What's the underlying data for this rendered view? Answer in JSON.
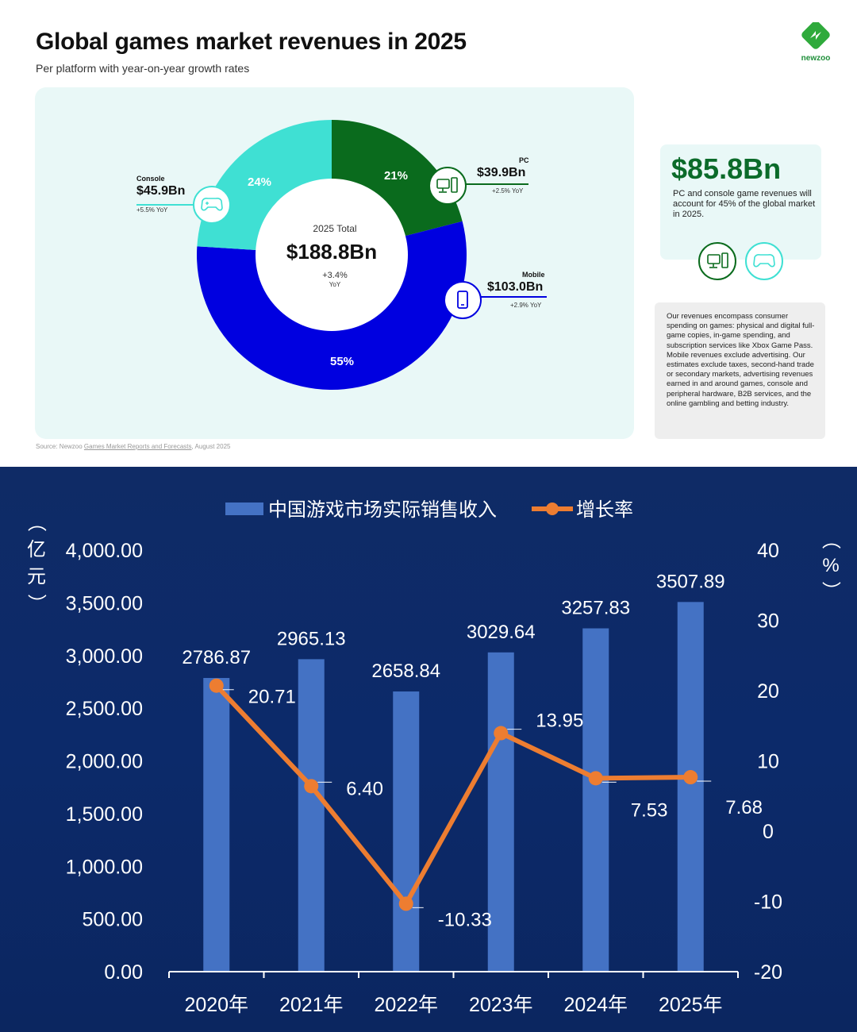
{
  "header": {
    "title": "Global games market revenues in 2025",
    "subtitle": "Per platform with year-on-year growth rates",
    "logo_text": "newzoo"
  },
  "donut": {
    "center_label": "2025 Total",
    "center_value": "$188.8Bn",
    "center_growth": "+3.4%",
    "center_growth_unit": "YoY",
    "segments": [
      {
        "platform": "PC",
        "value": "$39.9Bn",
        "yoy": "+2.5% YoY",
        "share": 21,
        "share_label": "21%",
        "color": "#0a6b1d",
        "icon": "pc-icon"
      },
      {
        "platform": "Mobile",
        "value": "$103.0Bn",
        "yoy": "+2.9% YoY",
        "share": 55,
        "share_label": "55%",
        "color": "#0000e0",
        "icon": "mobile-icon"
      },
      {
        "platform": "Console",
        "value": "$45.9Bn",
        "yoy": "+5.5% YoY",
        "share": 24,
        "share_label": "24%",
        "color": "#3fe0d3",
        "icon": "gamepad-icon"
      }
    ]
  },
  "stat_card": {
    "value": "$85.8Bn",
    "text": "PC and console game revenues will account for 45% of the global market in 2025."
  },
  "note": {
    "text": "Our revenues encompass consumer spending on games: physical and digital full-game copies, in-game spending, and subscription services like Xbox Game Pass. Mobile revenues exclude advertising. Our estimates exclude taxes, second-hand trade or secondary markets, advertising revenues earned in and around games, console and peripheral hardware, B2B services, and the online gambling and betting industry."
  },
  "source": {
    "prefix": "Source: Newzoo ",
    "link": "Games Market Reports and Forecasts",
    "suffix": ", August 2025"
  },
  "chart_data": {
    "type": "bar",
    "categories": [
      "2020年",
      "2021年",
      "2022年",
      "2023年",
      "2024年",
      "2025年"
    ],
    "series": [
      {
        "name": "中国游戏市场实际销售收入",
        "type": "bar",
        "axis": "left",
        "color": "#4472c4",
        "values": [
          2786.87,
          2965.13,
          2658.84,
          3029.64,
          3257.83,
          3507.89
        ],
        "labels": [
          "2786.87",
          "2965.13",
          "2658.84",
          "3029.64",
          "3257.83",
          "3507.89"
        ]
      },
      {
        "name": "增长率",
        "type": "line",
        "axis": "right",
        "color": "#ed7d31",
        "values": [
          20.71,
          6.4,
          -10.33,
          13.95,
          7.53,
          7.68
        ],
        "labels": [
          "20.71",
          "6.40",
          "-10.33",
          "13.95",
          "7.53",
          "7.68"
        ]
      }
    ],
    "y_left": {
      "label": "（亿元）",
      "range": [
        0,
        4000
      ],
      "ticks": [
        "0.00",
        "500.00",
        "1,000.00",
        "1,500.00",
        "2,000.00",
        "2,500.00",
        "3,000.00",
        "3,500.00",
        "4,000.00"
      ]
    },
    "y_right": {
      "label": "（%）",
      "range": [
        -20,
        40
      ],
      "ticks": [
        "-20",
        "-10",
        "0",
        "10",
        "20",
        "30",
        "40"
      ]
    },
    "legend_position": "top",
    "grid": false
  }
}
